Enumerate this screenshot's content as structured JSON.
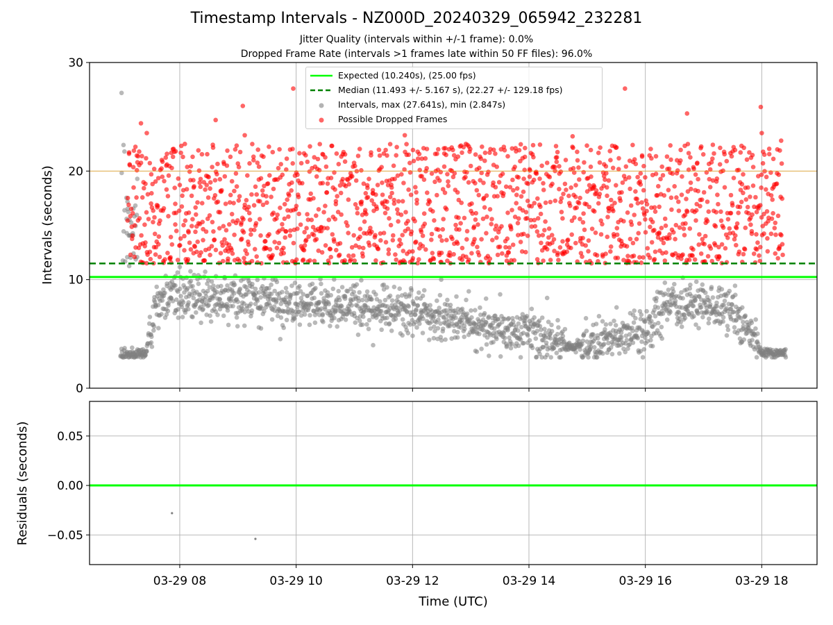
{
  "figure": {
    "title": "Timestamp Intervals - NZ000D_20240329_065942_232281",
    "subtitle_1": "Jitter Quality (intervals within +/-1 frame): 0.0%",
    "subtitle_2": "Dropped Frame Rate (intervals >1 frames late within 50 FF files): 96.0%"
  },
  "colors": {
    "expected": "#00ff00",
    "median": "#008000",
    "intervals": "#808080",
    "dropped": "#ff0000",
    "threshold": "#ffa500",
    "grid": "#b0b0b0"
  },
  "legend": {
    "expected": "Expected (10.240s), (25.00 fps)",
    "median": "Median (11.493 +/- 5.167 s), (22.27 +/- 129.18 fps)",
    "intervals": "Intervals, max (27.641s), min (2.847s)",
    "dropped": "Possible Dropped Frames"
  },
  "chart_data": [
    {
      "type": "scatter",
      "ylabel": "Intervals (seconds)",
      "ylim": [
        0,
        30
      ],
      "yticks": [
        0,
        10,
        20,
        30
      ],
      "xlim": [
        "2024-03-29 06:27",
        "2024-03-29 18:57"
      ],
      "xticks": [
        "03-29 08",
        "03-29 10",
        "03-29 12",
        "03-29 14",
        "03-29 16",
        "03-29 18"
      ],
      "grid": true,
      "legend_position": "upper-center",
      "reference_lines": {
        "expected": 10.24,
        "median": 11.493,
        "threshold": 20.0
      },
      "observation_start": "2024-03-29 06:59",
      "observation_end": "2024-03-29 18:25",
      "max_interval": 27.641,
      "min_interval": 2.847,
      "interval_level_profile": [
        {
          "x": "2024-03-29 06:59",
          "typical": 3.2
        },
        {
          "x": "2024-03-29 07:25",
          "typical": 3.2
        },
        {
          "x": "2024-03-29 07:40",
          "typical": 8.6
        },
        {
          "x": "2024-03-29 09:00",
          "typical": 8.2
        },
        {
          "x": "2024-03-29 10:30",
          "typical": 7.6
        },
        {
          "x": "2024-03-29 12:00",
          "typical": 7.0
        },
        {
          "x": "2024-03-29 13:00",
          "typical": 6.0
        },
        {
          "x": "2024-03-29 14:00",
          "typical": 5.0
        },
        {
          "x": "2024-03-29 14:45",
          "typical": 3.8
        },
        {
          "x": "2024-03-29 15:30",
          "typical": 4.8
        },
        {
          "x": "2024-03-29 16:00",
          "typical": 5.5
        },
        {
          "x": "2024-03-29 16:20",
          "typical": 7.8
        },
        {
          "x": "2024-03-29 17:30",
          "typical": 7.2
        },
        {
          "x": "2024-03-29 17:50",
          "typical": 5.0
        },
        {
          "x": "2024-03-29 18:00",
          "typical": 3.3
        },
        {
          "x": "2024-03-29 18:25",
          "typical": 3.3
        }
      ],
      "dropped_frames_band": [
        11.5,
        22.5
      ],
      "dropped_outliers": [
        {
          "x": "2024-03-29 07:20",
          "y": 24.4
        },
        {
          "x": "2024-03-29 07:26",
          "y": 23.5
        },
        {
          "x": "2024-03-29 08:37",
          "y": 24.7
        },
        {
          "x": "2024-03-29 09:05",
          "y": 26.0
        },
        {
          "x": "2024-03-29 09:07",
          "y": 23.3
        },
        {
          "x": "2024-03-29 09:57",
          "y": 27.6
        },
        {
          "x": "2024-03-29 11:52",
          "y": 23.3
        },
        {
          "x": "2024-03-29 14:45",
          "y": 23.2
        },
        {
          "x": "2024-03-29 15:39",
          "y": 27.6
        },
        {
          "x": "2024-03-29 16:43",
          "y": 25.3
        },
        {
          "x": "2024-03-29 17:59",
          "y": 25.9
        },
        {
          "x": "2024-03-29 18:00",
          "y": 23.5
        },
        {
          "x": "2024-03-29 18:20",
          "y": 22.8
        }
      ],
      "interval_outliers": [
        {
          "x": "2024-03-29 07:00",
          "y": 27.2
        },
        {
          "x": "2024-03-29 07:02",
          "y": 22.4
        },
        {
          "x": "2024-03-29 07:03",
          "y": 21.8
        }
      ]
    },
    {
      "type": "scatter",
      "ylabel": "Residuals (seconds)",
      "ylim": [
        -0.08,
        0.085
      ],
      "yticks": [
        "−0.05",
        "0.00",
        "0.05"
      ],
      "xlabel": "Time (UTC)",
      "xticks": [
        "03-29 08",
        "03-29 10",
        "03-29 12",
        "03-29 14",
        "03-29 16",
        "03-29 18"
      ],
      "grid": true,
      "reference_lines": {
        "zero": 0.0
      },
      "points": [
        {
          "x": "2024-03-29 07:52",
          "y": -0.028
        },
        {
          "x": "2024-03-29 09:18",
          "y": -0.054
        }
      ]
    }
  ]
}
